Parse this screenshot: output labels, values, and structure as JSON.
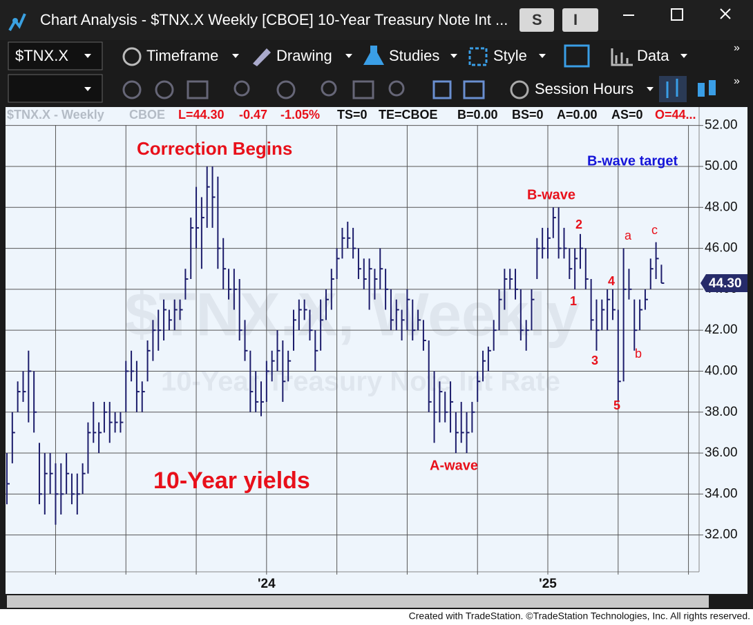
{
  "window": {
    "title": "Chart Analysis - $TNX.X Weekly [CBOE] 10-Year Treasury Note Int ...",
    "buttons": [
      "S",
      "I"
    ]
  },
  "toolbar": {
    "symbol": "$TNX.X",
    "menus": [
      "Timeframe",
      "Drawing",
      "Studies",
      "Style",
      "Data"
    ],
    "session": "Session Hours"
  },
  "status_line": [
    "$TNX.X - Weekly",
    "CBOE",
    "L=44.30",
    "-0.47",
    "-1.05%",
    "TS=0",
    "TE=CBOE",
    "B=0.00",
    "BS=0",
    "A=0.00",
    "AS=0",
    "O=44..."
  ],
  "watermark": [
    "$TNX.X, Weekly",
    "10-Year Treasury Note Int Rate"
  ],
  "chart_data": {
    "type": "ohlc",
    "color": "#1c1c6b",
    "grid": true,
    "categories": [
      null,
      null,
      null,
      null,
      null,
      null,
      null,
      null,
      null,
      null,
      null,
      null,
      null,
      null,
      null,
      null,
      null,
      null,
      null,
      null,
      null,
      null,
      null,
      null,
      null,
      null,
      null,
      null,
      null,
      null,
      null,
      null,
      null,
      null,
      null,
      null,
      null,
      null,
      null,
      null,
      null,
      null,
      null,
      null,
      null,
      null,
      null,
      null,
      "'24",
      null,
      null,
      null,
      null,
      null,
      null,
      null,
      null,
      null,
      null,
      null,
      null,
      null,
      null,
      null,
      null,
      null,
      null,
      null,
      null,
      null,
      null,
      null,
      null,
      null,
      null,
      null,
      null,
      null,
      null,
      null,
      null,
      null,
      null,
      null,
      null,
      null,
      null,
      null,
      null,
      null,
      null,
      null,
      null,
      null,
      null,
      null,
      null,
      null,
      null,
      null,
      "'25",
      null,
      null,
      null,
      null,
      null,
      null,
      null,
      null,
      null,
      null,
      null,
      null,
      null,
      null,
      null,
      null,
      null,
      null,
      null,
      null,
      null
    ],
    "high": [
      36,
      38,
      39.5,
      40,
      41,
      40,
      36.5,
      36,
      36,
      35.5,
      35.5,
      36,
      35,
      35,
      35.5,
      37.5,
      38.5,
      37.5,
      38.5,
      38.5,
      38,
      38,
      40.5,
      41,
      40.5,
      39.5,
      41.5,
      42.5,
      43,
      43.5,
      43,
      43.5,
      43.5,
      45,
      47.5,
      49,
      48.5,
      50,
      50,
      49.5,
      46.5,
      45,
      45,
      44.5,
      42.5,
      41,
      40,
      39.5,
      40.5,
      41,
      42,
      41.5,
      41,
      43,
      43.5,
      43.5,
      43,
      42,
      43.5,
      44,
      45,
      46,
      47,
      47.3,
      47,
      46,
      45.5,
      45.5,
      45,
      46,
      45,
      44,
      43.5,
      43,
      44,
      43.5,
      43,
      42.5,
      41.5,
      40,
      39.5,
      39,
      39.5,
      38,
      38.5,
      38,
      38.5,
      40,
      41,
      41.2,
      42.5,
      44,
      45,
      45,
      45,
      44,
      42.5,
      44,
      46.5,
      47,
      47,
      48,
      48,
      47,
      46,
      46,
      46.7,
      46,
      44.5,
      43.5,
      43.5,
      44,
      44,
      43,
      46,
      45,
      43.5,
      43.5,
      44,
      45.5,
      46.3,
      45.2
    ],
    "low": [
      33.5,
      35.5,
      38,
      38.5,
      37.5,
      37,
      33.5,
      33,
      34,
      32.5,
      33,
      34,
      33.5,
      33,
      34,
      35,
      36.5,
      36,
      37,
      36.5,
      37,
      37,
      38,
      39.5,
      38,
      38,
      39.5,
      40.5,
      41,
      41.5,
      42,
      42,
      42.5,
      43.5,
      44.5,
      46,
      45,
      47,
      47,
      45,
      44,
      43.5,
      43,
      41.5,
      40.5,
      38,
      38,
      37.8,
      38.5,
      39.5,
      40,
      38.5,
      39.5,
      41,
      42,
      42.5,
      41.5,
      40,
      41,
      42.5,
      43,
      44.5,
      45.5,
      46,
      45.5,
      44.5,
      44,
      43,
      43.5,
      44,
      43,
      42,
      42,
      41.5,
      42,
      41.5,
      42,
      41,
      38,
      36.5,
      37.5,
      37.5,
      37,
      36,
      36.5,
      36,
      37,
      38.5,
      39.5,
      40,
      41,
      42,
      43,
      44,
      43.5,
      41.5,
      41,
      42,
      44.5,
      45.5,
      45.5,
      46.5,
      45.5,
      45.5,
      44.5,
      44,
      45,
      44,
      42,
      41,
      42,
      42,
      42.5,
      38.5,
      39.5,
      43.5,
      41,
      42,
      43,
      44,
      44.5,
      44.3
    ],
    "close": [
      34.5,
      37,
      39,
      39,
      40,
      38,
      34,
      35,
      35,
      34,
      34,
      35,
      34,
      34,
      35,
      37,
      37,
      37,
      38,
      37.5,
      37.5,
      37.5,
      40,
      40,
      39,
      39,
      41,
      42,
      42,
      43,
      42.5,
      43,
      43,
      44.5,
      47,
      47,
      47.5,
      49,
      48.5,
      46,
      45,
      44,
      44,
      42,
      41,
      39,
      38.5,
      38.5,
      40,
      40.5,
      41,
      39.5,
      40.5,
      42.5,
      43,
      43,
      42,
      41,
      42.5,
      43.5,
      44.5,
      45.5,
      46.5,
      46.5,
      46,
      45,
      44.5,
      45,
      44.5,
      45,
      44,
      42.5,
      43,
      42.5,
      43.5,
      42,
      42.5,
      41.5,
      38.5,
      38,
      39,
      38,
      38.5,
      37,
      37,
      37,
      38,
      39.5,
      40.5,
      41,
      42,
      43.5,
      44.5,
      44.5,
      44,
      42,
      42,
      43.5,
      46,
      46,
      46.5,
      47.5,
      46,
      46,
      45,
      45.5,
      46,
      44.5,
      42.5,
      42,
      43,
      43.5,
      43,
      39.5,
      44,
      44,
      42,
      43,
      43.5,
      45,
      45.5,
      44.3
    ],
    "ylim": [
      30.2,
      52.9
    ],
    "yticks": [
      {
        "value": 32,
        "label": "32.00"
      },
      {
        "value": 34,
        "label": "34.00"
      },
      {
        "value": 36,
        "label": "36.00"
      },
      {
        "value": 38,
        "label": "38.00"
      },
      {
        "value": 40,
        "label": "40.00"
      },
      {
        "value": 42,
        "label": "42.00"
      },
      {
        "value": 44,
        "label": "44.00"
      },
      {
        "value": 46,
        "label": "46.00"
      },
      {
        "value": 48,
        "label": "48.00"
      },
      {
        "value": 50,
        "label": "50.00"
      },
      {
        "value": 52,
        "label": "52.00"
      }
    ],
    "last_price": {
      "value": 44.3,
      "label": "44.30"
    },
    "annotations": [
      "Correction Begins",
      "10-Year yields",
      "A-wave",
      "B-wave",
      "B-wave target",
      "1",
      "2",
      "3",
      "4",
      "5",
      "a",
      "b",
      "c"
    ]
  },
  "footer": "Created with TradeStation. ©TradeStation Technologies, Inc. All rights reserved."
}
